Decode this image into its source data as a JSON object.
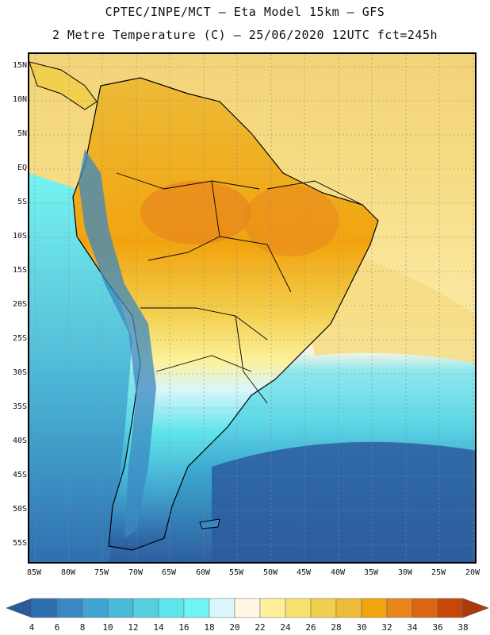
{
  "header": {
    "line1": "CPTEC/INPE/MCT –  Eta Model 15km – GFS",
    "line2": "2 Metre Temperature (C) – 25/06/2020 12UTC fct=245h"
  },
  "map": {
    "lat_labels": [
      "15N",
      "10N",
      "5N",
      "EQ",
      "5S",
      "10S",
      "15S",
      "20S",
      "25S",
      "30S",
      "35S",
      "40S",
      "45S",
      "50S",
      "55S"
    ],
    "lon_labels": [
      "85W",
      "80W",
      "75W",
      "70W",
      "65W",
      "60W",
      "55W",
      "50W",
      "45W",
      "40W",
      "35W",
      "30W",
      "25W",
      "20W"
    ]
  },
  "colorbar": {
    "labels": [
      "4",
      "6",
      "8",
      "10",
      "12",
      "14",
      "16",
      "18",
      "20",
      "22",
      "24",
      "26",
      "28",
      "30",
      "32",
      "34",
      "36",
      "38"
    ],
    "colors": [
      "#2a5a9c",
      "#2f6fb0",
      "#3a88c2",
      "#41a3cf",
      "#4ab8d8",
      "#55cfe0",
      "#5ee5ea",
      "#6ff5f7",
      "#d9f6fc",
      "#fff7e4",
      "#fdf19b",
      "#f8e16e",
      "#f3cf4f",
      "#edbb38",
      "#f2a40e",
      "#e8861d",
      "#dd6414",
      "#c8460a",
      "#ad3810",
      "#b34a1c"
    ]
  }
}
